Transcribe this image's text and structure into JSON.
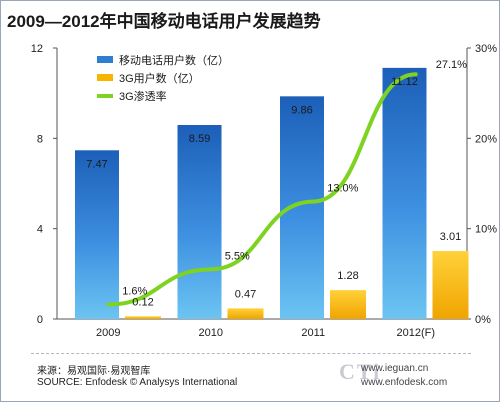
{
  "title": "2009—2012年中国移动电话用户发展趋势",
  "chart_data": {
    "type": "bar",
    "categories": [
      "2009",
      "2010",
      "2011",
      "2012(F)"
    ],
    "series": [
      {
        "name": "移动电话用户数（亿）",
        "values": [
          7.47,
          8.59,
          9.86,
          11.12
        ],
        "labels": [
          "7.47",
          "8.59",
          "9.86",
          "11.12"
        ],
        "axis": "left",
        "color": "#2f7fd0"
      },
      {
        "name": "3G用户数（亿）",
        "values": [
          0.12,
          0.47,
          1.28,
          3.01
        ],
        "labels": [
          "0.12",
          "0.47",
          "1.28",
          "3.01"
        ],
        "axis": "left",
        "color": "#f7b500"
      },
      {
        "name": "3G渗透率",
        "type": "line",
        "values": [
          1.6,
          5.5,
          13.0,
          27.1
        ],
        "labels": [
          "1.6%",
          "5.5%",
          "13.0%",
          "27.1%"
        ],
        "axis": "right",
        "color": "#7ed321"
      }
    ],
    "y_left": {
      "min": 0,
      "max": 12,
      "ticks": [
        "0",
        "4",
        "8",
        "12"
      ]
    },
    "y_right": {
      "min": 0,
      "max": 30,
      "ticks": [
        "0%",
        "10%",
        "20%",
        "30%"
      ]
    },
    "legend_position": "top-left",
    "grid": false
  },
  "source_cn": "来源：易观国际·易观智库",
  "source_en": "SOURCE: Enfodesk © Analysys International",
  "watermark": "CTi",
  "website_1": "www.ieguan.cn",
  "website_2": "www.enfodesk.com"
}
